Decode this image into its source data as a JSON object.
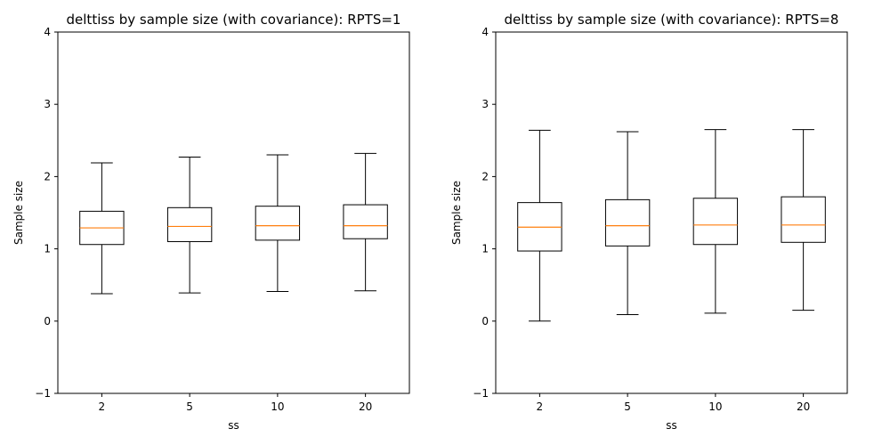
{
  "chart_data": [
    {
      "type": "box",
      "title": "delttiss by sample size (with covariance): RPTS=1",
      "xlabel": "ss",
      "ylabel": "Sample size",
      "ylim": [
        -1,
        4
      ],
      "yticks": [
        -1,
        0,
        1,
        2,
        3,
        4
      ],
      "categories": [
        "2",
        "5",
        "10",
        "20"
      ],
      "boxes": [
        {
          "whisker_low": 0.38,
          "q1": 1.06,
          "median": 1.29,
          "q3": 1.52,
          "whisker_high": 2.19
        },
        {
          "whisker_low": 0.39,
          "q1": 1.1,
          "median": 1.31,
          "q3": 1.57,
          "whisker_high": 2.27
        },
        {
          "whisker_low": 0.41,
          "q1": 1.12,
          "median": 1.32,
          "q3": 1.59,
          "whisker_high": 2.3
        },
        {
          "whisker_low": 0.42,
          "q1": 1.14,
          "median": 1.32,
          "q3": 1.61,
          "whisker_high": 2.32
        }
      ]
    },
    {
      "type": "box",
      "title": "delttiss by sample size (with covariance): RPTS=8",
      "xlabel": "ss",
      "ylabel": "Sample size",
      "ylim": [
        -1,
        4
      ],
      "yticks": [
        -1,
        0,
        1,
        2,
        3,
        4
      ],
      "categories": [
        "2",
        "5",
        "10",
        "20"
      ],
      "boxes": [
        {
          "whisker_low": 0.0,
          "q1": 0.97,
          "median": 1.3,
          "q3": 1.64,
          "whisker_high": 2.64
        },
        {
          "whisker_low": 0.09,
          "q1": 1.04,
          "median": 1.32,
          "q3": 1.68,
          "whisker_high": 2.62
        },
        {
          "whisker_low": 0.11,
          "q1": 1.06,
          "median": 1.33,
          "q3": 1.7,
          "whisker_high": 2.65
        },
        {
          "whisker_low": 0.15,
          "q1": 1.09,
          "median": 1.33,
          "q3": 1.72,
          "whisker_high": 2.65
        }
      ]
    }
  ],
  "colors": {
    "median": "#ff7f0e",
    "box": "#000000",
    "axes": "#000000"
  }
}
